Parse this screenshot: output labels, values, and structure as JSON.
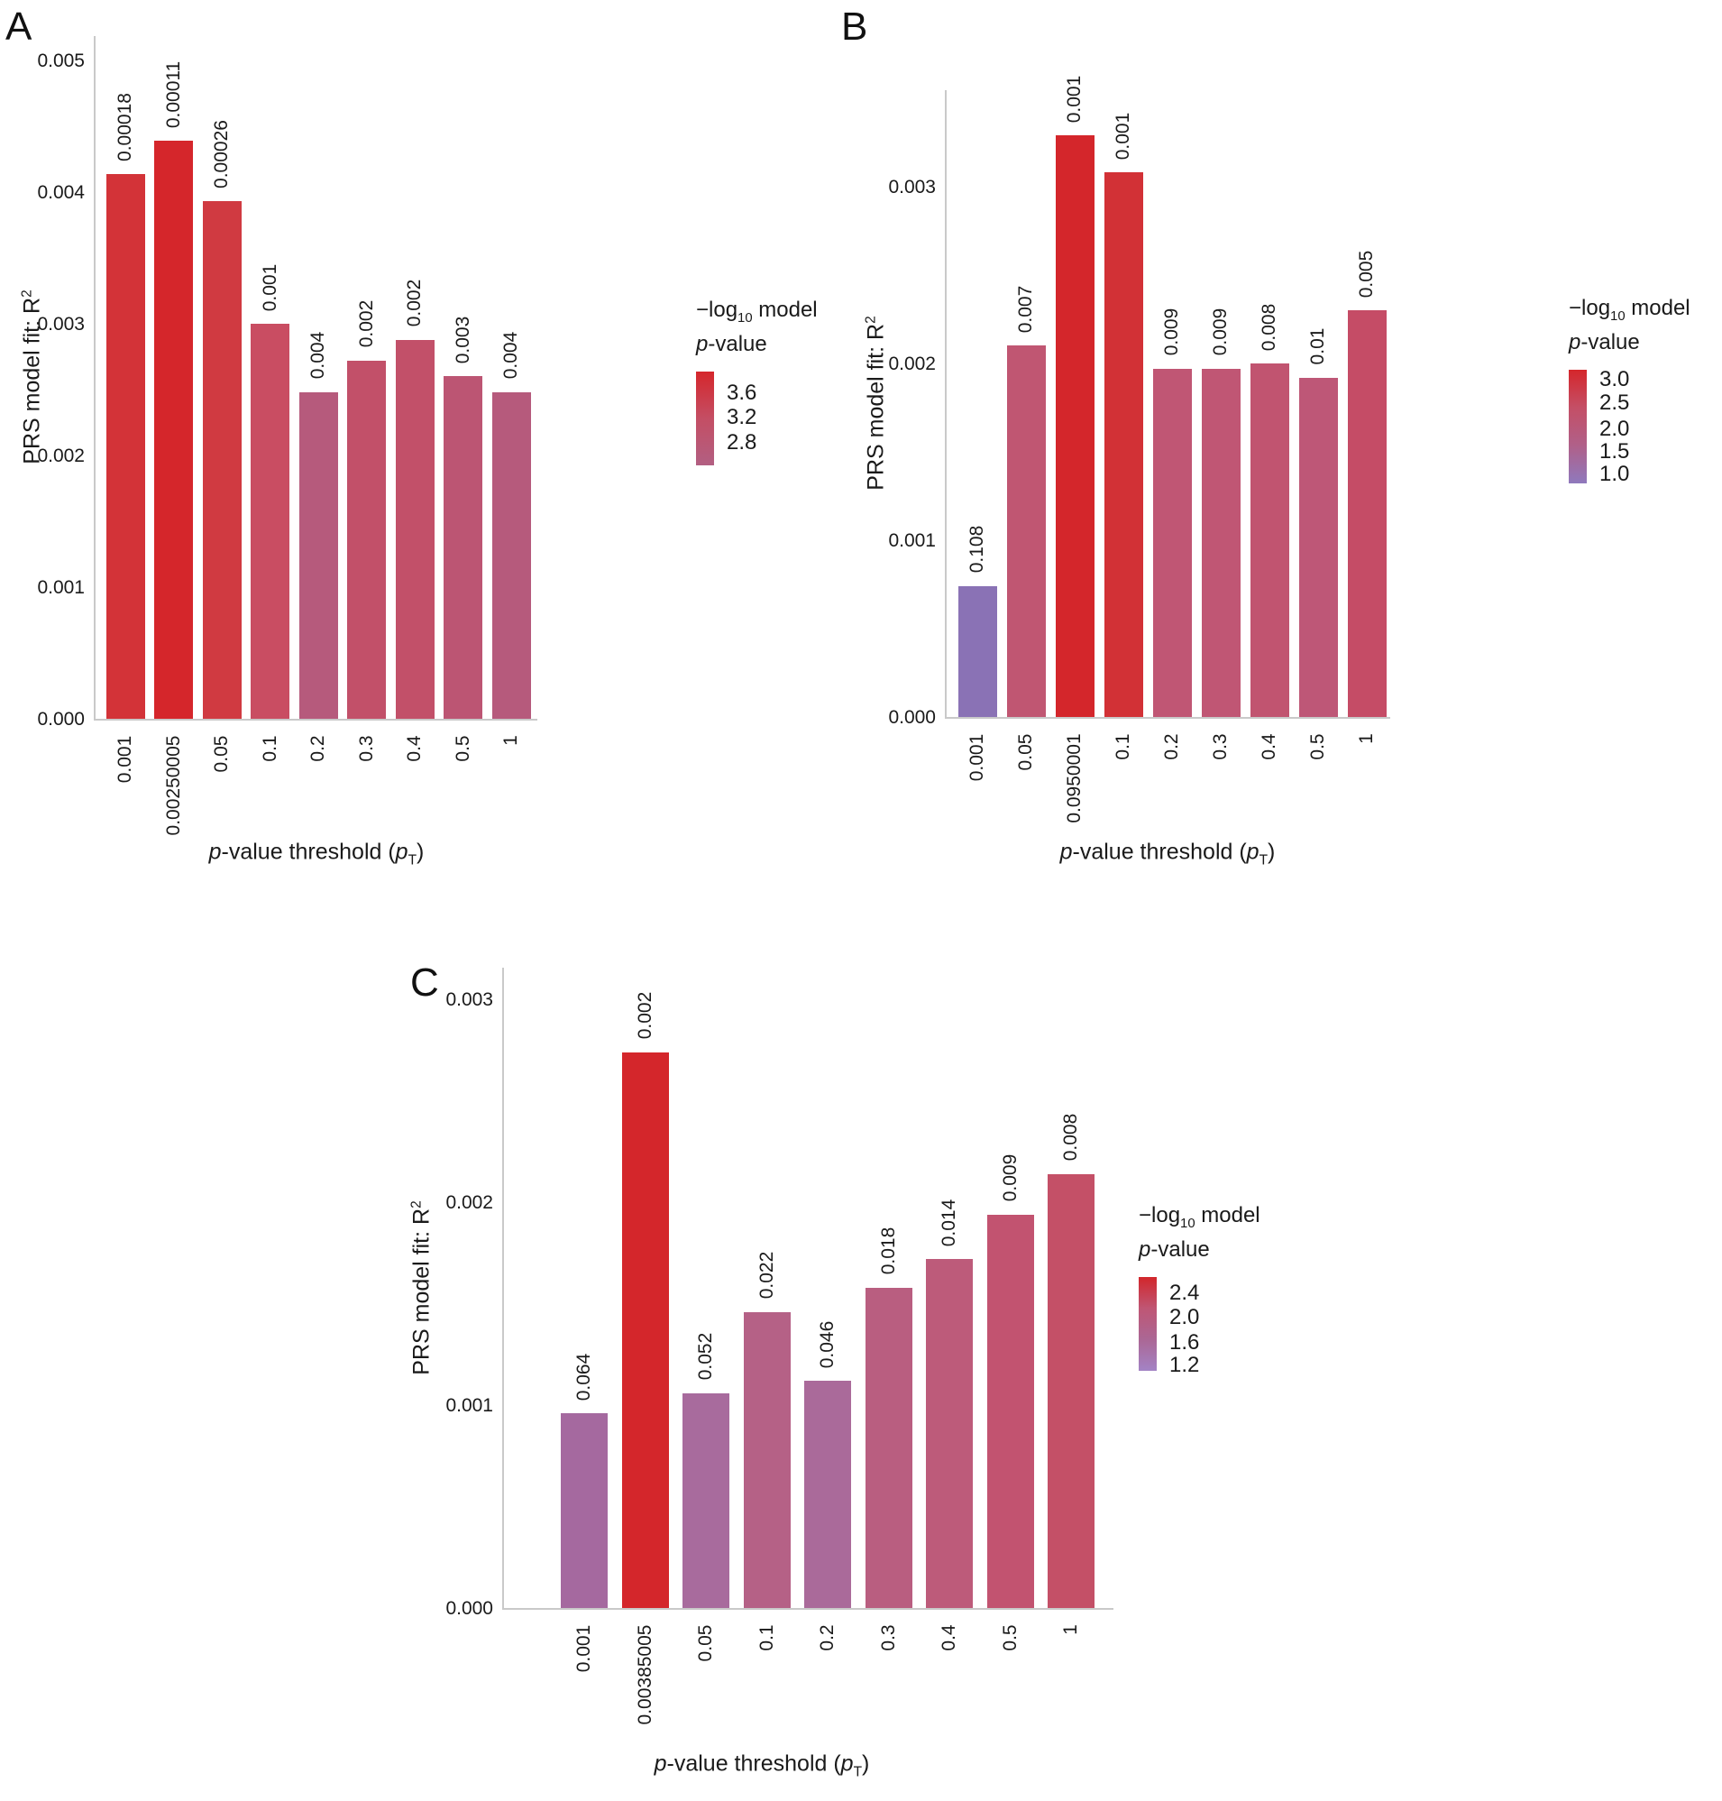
{
  "shared": {
    "ylabel": {
      "text": "PRS model fit: R",
      "sup": "2"
    },
    "xlabel": {
      "p1": "p",
      "t1": "-value threshold (",
      "p2": "p",
      "sub": "T",
      "t2": ")"
    },
    "legend_title": {
      "t1": "−log",
      "sub": "10",
      "t2": " model",
      "p": "p",
      "t3": "-value"
    },
    "axis_line_color": "#c9c9c9",
    "background": "#ffffff"
  },
  "chart_data": [
    {
      "panel": "A",
      "type": "bar",
      "title": "",
      "xlabel": "p-value threshold (pT)",
      "ylabel": "PRS model fit: R2",
      "categories": [
        "0.001",
        "0.00250005",
        "0.05",
        "0.1",
        "0.2",
        "0.3",
        "0.4",
        "0.5",
        "1"
      ],
      "values": [
        0.00414,
        0.00439,
        0.00393,
        0.003,
        0.00248,
        0.00272,
        0.00288,
        0.0026,
        0.00248
      ],
      "bar_labels": [
        "0.00018",
        "0.00011",
        "0.00026",
        "0.001",
        "0.004",
        "0.002",
        "0.002",
        "0.003",
        "0.004"
      ],
      "bar_colors": [
        "#d33338",
        "#d5262b",
        "#d03a41",
        "#c94d62",
        "#b65a7c",
        "#c25069",
        "#c25069",
        "#bc5573",
        "#b65a7c"
      ],
      "ylim": [
        0,
        0.005
      ],
      "yticks": [
        {
          "label": "0.000",
          "value": 0.0
        },
        {
          "label": "0.001",
          "value": 0.001
        },
        {
          "label": "0.002",
          "value": 0.002
        },
        {
          "label": "0.003",
          "value": 0.003
        },
        {
          "label": "0.004",
          "value": 0.004
        },
        {
          "label": "0.005",
          "value": 0.005
        }
      ],
      "legend": {
        "ticks": [
          {
            "label": "3.6",
            "f": 0.23
          },
          {
            "label": "3.2",
            "f": 0.49
          },
          {
            "label": "2.8",
            "f": 0.76
          }
        ],
        "gradient": [
          "#d5262b",
          "#c44e64",
          "#b25f82"
        ]
      }
    },
    {
      "panel": "B",
      "type": "bar",
      "title": "",
      "xlabel": "p-value threshold (pT)",
      "ylabel": "PRS model fit: R2",
      "categories": [
        "0.001",
        "0.05",
        "0.0950001",
        "0.1",
        "0.2",
        "0.3",
        "0.4",
        "0.5",
        "1"
      ],
      "values": [
        0.00074,
        0.0021,
        0.00329,
        0.00308,
        0.00197,
        0.00197,
        0.002,
        0.00192,
        0.0023
      ],
      "bar_labels": [
        "0.108",
        "0.007",
        "0.001",
        "0.001",
        "0.009",
        "0.009",
        "0.008",
        "0.01",
        "0.005"
      ],
      "bar_colors": [
        "#8a72b5",
        "#c05672",
        "#d4262b",
        "#d23136",
        "#c05674",
        "#c05674",
        "#c15470",
        "#be5777",
        "#c54c66"
      ],
      "ylim": [
        0,
        0.003
      ],
      "yticks": [
        {
          "label": "0.000",
          "value": 0.0
        },
        {
          "label": "0.001",
          "value": 0.001
        },
        {
          "label": "0.002",
          "value": 0.002
        },
        {
          "label": "0.003",
          "value": 0.003
        }
      ],
      "legend": {
        "ticks": [
          {
            "label": "3.0",
            "f": 0.09
          },
          {
            "label": "2.5",
            "f": 0.29
          },
          {
            "label": "2.0",
            "f": 0.52
          },
          {
            "label": "1.5",
            "f": 0.72
          },
          {
            "label": "1.0",
            "f": 0.92
          }
        ],
        "gradient": [
          "#d5262b",
          "#c44f66",
          "#b06089",
          "#8f79bd"
        ]
      }
    },
    {
      "panel": "C",
      "type": "bar",
      "title": "",
      "xlabel": "p-value threshold (pT)",
      "ylabel": "PRS model fit: R2",
      "categories": [
        "0.001",
        "0.00385005",
        "0.05",
        "0.1",
        "0.2",
        "0.3",
        "0.4",
        "0.5",
        "1"
      ],
      "values": [
        0.00096,
        0.00274,
        0.00106,
        0.00146,
        0.00112,
        0.00158,
        0.00172,
        0.00194,
        0.00214
      ],
      "bar_labels": [
        "0.064",
        "0.002",
        "0.052",
        "0.022",
        "0.046",
        "0.018",
        "0.014",
        "0.009",
        "0.008"
      ],
      "bar_colors": [
        "#a5699f",
        "#d4262b",
        "#a86b9d",
        "#b56186",
        "#aa6a9a",
        "#b95e80",
        "#bd5b7a",
        "#c25370",
        "#c45067"
      ],
      "ylim": [
        0,
        0.003
      ],
      "yticks": [
        {
          "label": "0.000",
          "value": 0.0
        },
        {
          "label": "0.001",
          "value": 0.001
        },
        {
          "label": "0.002",
          "value": 0.002
        },
        {
          "label": "0.003",
          "value": 0.003
        }
      ],
      "legend": {
        "ticks": [
          {
            "label": "2.4",
            "f": 0.17
          },
          {
            "label": "2.0",
            "f": 0.43
          },
          {
            "label": "1.6",
            "f": 0.7
          },
          {
            "label": "1.2",
            "f": 0.94
          }
        ],
        "gradient": [
          "#d2262b",
          "#bf5674",
          "#ab6795",
          "#a383c5"
        ]
      }
    }
  ]
}
